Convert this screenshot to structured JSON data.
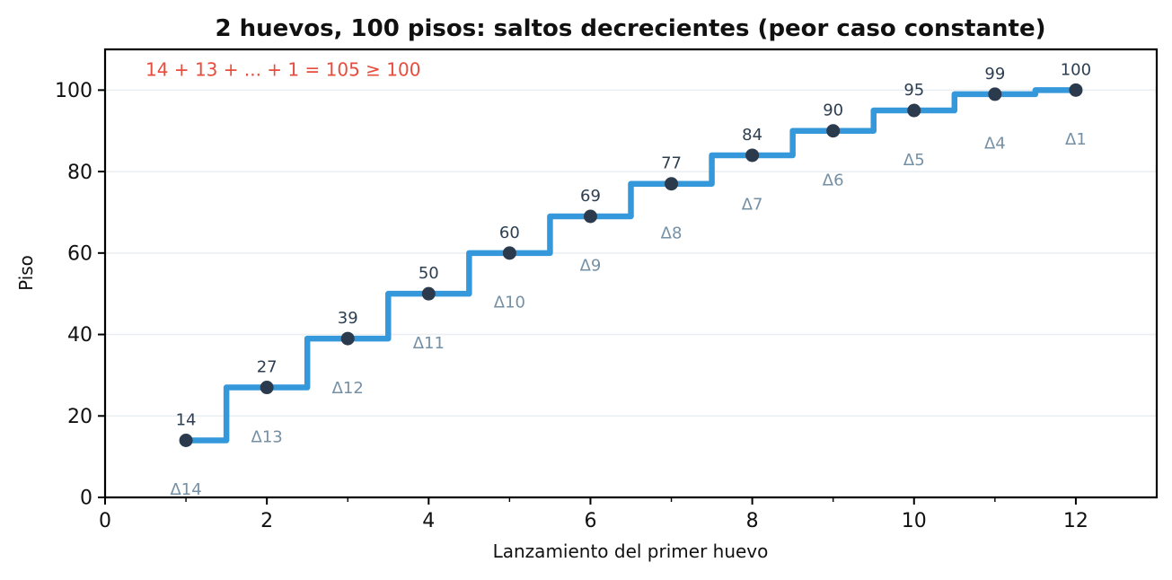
{
  "chart_data": {
    "type": "line",
    "step_style": "mid",
    "title": "2 huevos, 100 pisos: saltos decrecientes (peor caso constante)",
    "xlabel": "Lanzamiento del primer huevo",
    "ylabel": "Piso",
    "x": [
      1,
      2,
      3,
      4,
      5,
      6,
      7,
      8,
      9,
      10,
      11,
      12
    ],
    "y": [
      14,
      27,
      39,
      50,
      60,
      69,
      77,
      84,
      90,
      95,
      99,
      100
    ],
    "point_labels": [
      "14",
      "27",
      "39",
      "50",
      "60",
      "69",
      "77",
      "84",
      "90",
      "95",
      "99",
      "100"
    ],
    "delta_labels": [
      "Δ14",
      "Δ13",
      "Δ12",
      "Δ11",
      "Δ10",
      "Δ9",
      "Δ8",
      "Δ7",
      "Δ6",
      "Δ5",
      "Δ4",
      "Δ1"
    ],
    "annotation": {
      "text": "14 + 13 + ... + 1 = 105 ≥ 100",
      "x": 0.5,
      "y": 105
    },
    "xlim": [
      0,
      13
    ],
    "ylim": [
      0,
      110
    ],
    "xticks": [
      0,
      2,
      4,
      6,
      8,
      10,
      12
    ],
    "xminorticks": [
      1,
      3,
      5,
      7,
      9,
      11
    ],
    "yticks": [
      0,
      20,
      40,
      60,
      80,
      100
    ],
    "grid": "horizontal-only",
    "legend": "none",
    "colors": {
      "line": "#3498db",
      "marker": "#2b3b4d",
      "value_label": "#2c3e50",
      "delta_label": "#7590a5",
      "annotation": "#e74c3c",
      "grid": "#e9eef1",
      "axis": "#000000"
    }
  }
}
